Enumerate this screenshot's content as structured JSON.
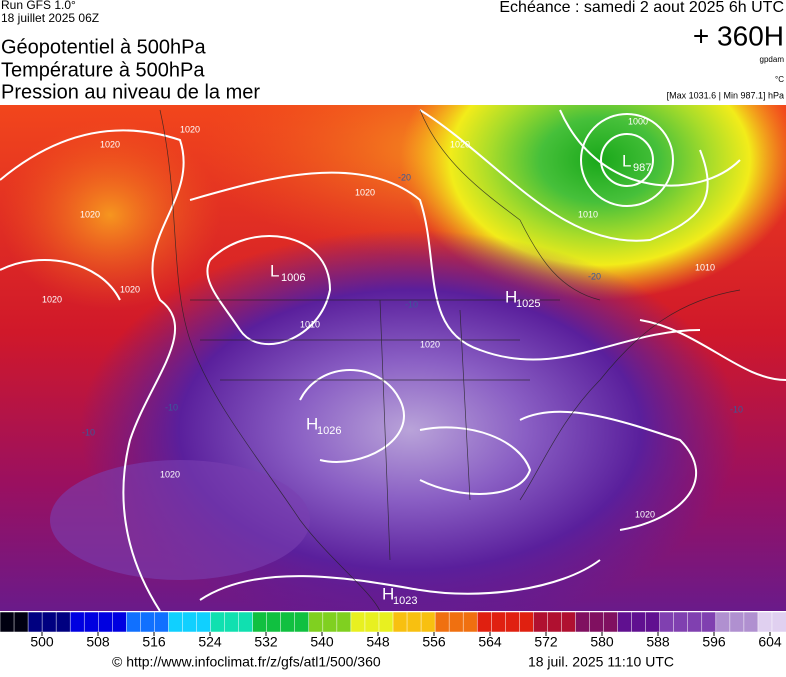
{
  "header": {
    "run": "Run GFS 1.0°",
    "date": "18 juillet 2025 06Z",
    "titles": [
      "Géopotentiel à 500hPa",
      "Température à 500hPa",
      "Pression au niveau de la mer"
    ],
    "echeance": "Echéance : samedi 2 aout 2025 6h UTC",
    "offset": "+ 360H",
    "unit_geo": "gpdam",
    "unit_temp": "°C",
    "range": "[Max 1031.6 | Min 987.1] hPa"
  },
  "map": {
    "centers": [
      {
        "letter": "L",
        "value": "1006"
      },
      {
        "letter": "H",
        "value": "1025"
      },
      {
        "letter": "H",
        "value": "1026"
      },
      {
        "letter": "H",
        "value": "1023"
      },
      {
        "letter": "L",
        "value": "987"
      }
    ],
    "isobar_labels": [
      "1020",
      "1020",
      "1020",
      "1020",
      "1020",
      "1020",
      "1010",
      "1000",
      "1010",
      "1010",
      "1020",
      "1020",
      "1020",
      "1020"
    ],
    "temp_labels": [
      "-20",
      "-20",
      "-10",
      "-10",
      "-10",
      "-10"
    ]
  },
  "colorbar": {
    "ticks": [
      500,
      508,
      516,
      524,
      532,
      540,
      548,
      556,
      564,
      572,
      580,
      588,
      596,
      604
    ]
  },
  "footer": {
    "url": "© http://www.infoclimat.fr/z/gfs/atl1/500/360",
    "generated": "18 juil. 2025 11:10 UTC"
  }
}
